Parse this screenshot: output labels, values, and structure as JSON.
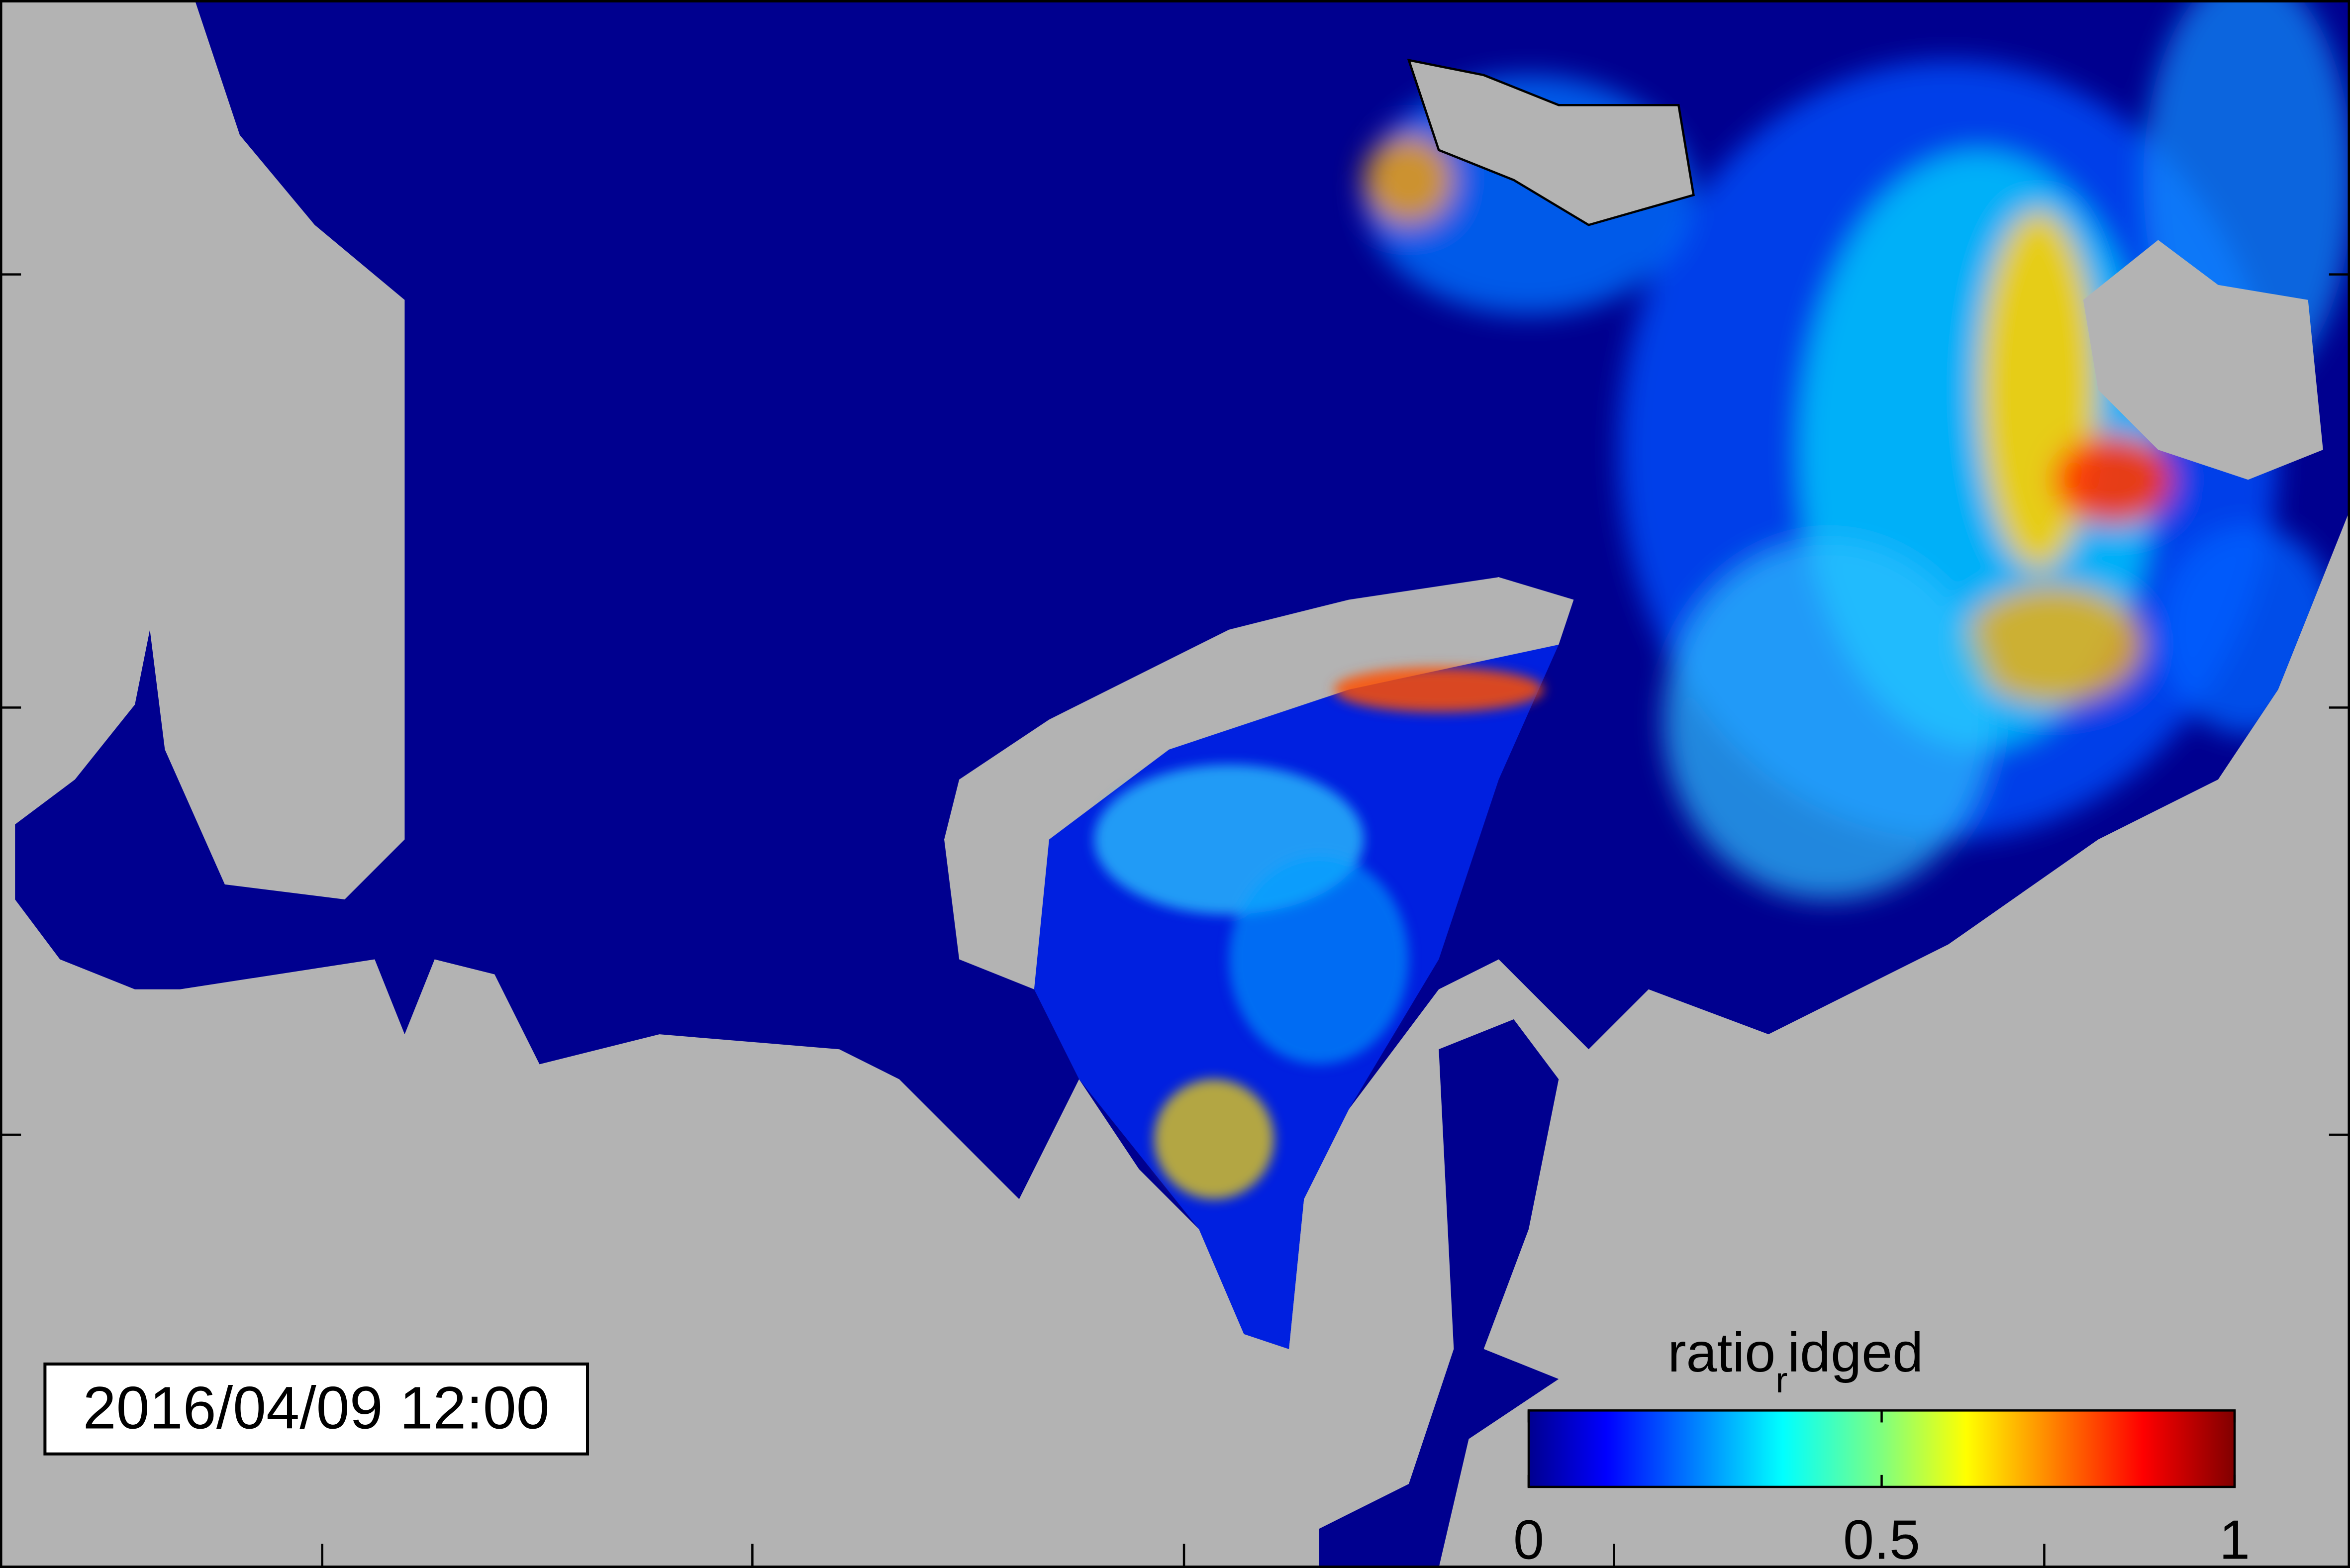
{
  "timestamp": "2016/04/09 12:00",
  "colorbar": {
    "label": {
      "main": "ratio",
      "subscript": "r",
      "rest": "idged"
    },
    "lim": [
      0,
      1
    ],
    "ticks": [
      0,
      0.5,
      1
    ],
    "colormap": "jet"
  }
}
